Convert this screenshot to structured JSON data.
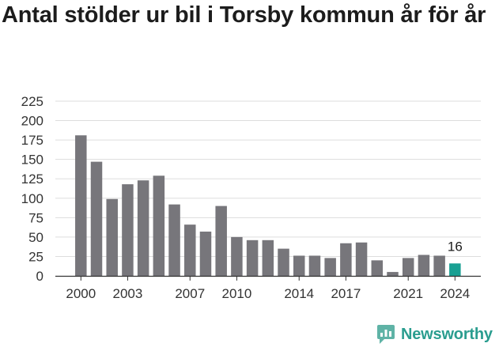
{
  "title": "Antal stölder ur bil i Torsby kommun år för år",
  "brand": {
    "name": "Newsworthy",
    "icon": "newsworthy-logo-icon"
  },
  "colors": {
    "bar": "#77767b",
    "highlight": "#19a093",
    "grid": "#dddddd",
    "axis": "#333333",
    "brand": "#2a9d8f"
  },
  "chart_data": {
    "type": "bar",
    "title": "Antal stölder ur bil i Torsby kommun år för år",
    "xlabel": "",
    "ylabel": "",
    "categories": [
      "2000",
      "2001",
      "2002",
      "2003",
      "2004",
      "2005",
      "2006",
      "2007",
      "2008",
      "2009",
      "2010",
      "2011",
      "2012",
      "2013",
      "2014",
      "2015",
      "2016",
      "2017",
      "2018",
      "2019",
      "2020",
      "2021",
      "2022",
      "2023",
      "2024"
    ],
    "values": [
      181,
      147,
      99,
      118,
      123,
      129,
      92,
      66,
      57,
      90,
      50,
      46,
      46,
      35,
      26,
      26,
      23,
      42,
      43,
      20,
      5,
      23,
      27,
      26,
      16
    ],
    "highlight_index": 24,
    "data_labels": [
      {
        "index": 24,
        "text": "16"
      }
    ],
    "x_tick_labels": [
      "2000",
      "2003",
      "2007",
      "2010",
      "2014",
      "2017",
      "2021",
      "2024"
    ],
    "y_ticks": [
      0,
      25,
      50,
      75,
      100,
      125,
      150,
      175,
      200,
      225
    ],
    "ylim": [
      0,
      225
    ],
    "grid": true,
    "legend": "none"
  }
}
